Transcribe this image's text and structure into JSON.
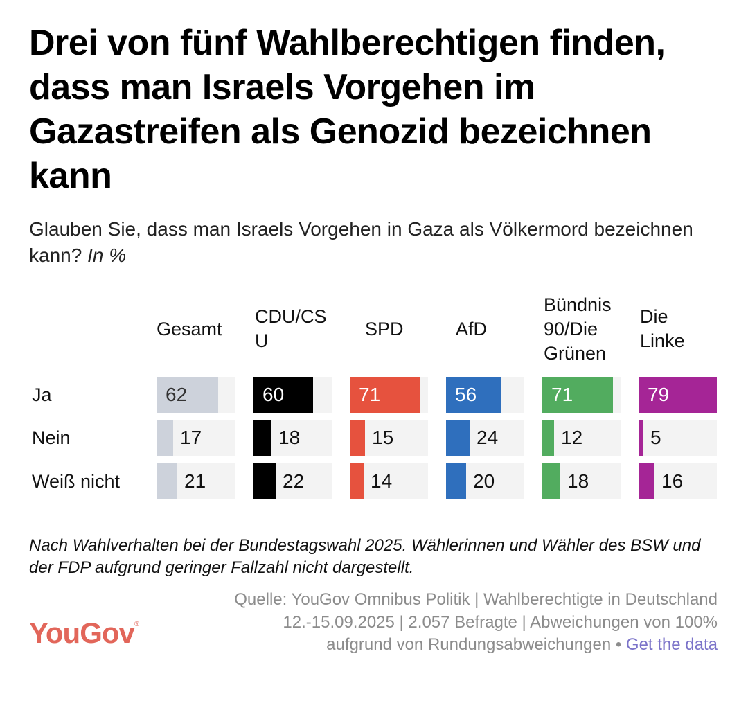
{
  "title": "Drei von fünf Wahlberechtigen finden, dass man Israels Vorgehen im Gazastreifen als Genozid bezeichnen kann",
  "subtitle": "Glauben Sie, dass man Israels Vorgehen in Gaza als Völkermord bezeichnen kann?",
  "subtitle_unit": "In %",
  "note": "Nach Wahlverhalten bei der Bundestagswahl 2025. Wählerinnen und Wähler des BSW und der FDP aufgrund geringer Fallzahl nicht dargestellt.",
  "source": "Quelle: YouGov Omnibus Politik | Wahlberechtigte in Deutschland 12.-15.09.2025 | 2.057 Befragte | Abweichungen von 100% aufgrund von Rundungsabweichungen •",
  "source_link": "Get the data",
  "logo": "YouGov",
  "chart_data": {
    "type": "bar",
    "title": "Drei von fünf Wahlberechtigen finden, dass man Israels Vorgehen im Gazastreifen als Genozid bezeichnen kann",
    "unit": "In %",
    "xlim": [
      0,
      100
    ],
    "categories": [
      "Ja",
      "Nein",
      "Weiß nicht"
    ],
    "series": [
      {
        "name": "Gesamt",
        "color": "#cdd2db",
        "text_color": "#333333",
        "values": [
          62,
          17,
          21
        ]
      },
      {
        "name": "CDU/CSU",
        "display": "CDU/CS\nU",
        "color": "#000000",
        "text_color": "#ffffff",
        "values": [
          60,
          18,
          22
        ]
      },
      {
        "name": "SPD",
        "color": "#e6523e",
        "text_color": "#ffffff",
        "values": [
          71,
          15,
          14
        ]
      },
      {
        "name": "AfD",
        "color": "#2f6fbd",
        "text_color": "#ffffff",
        "values": [
          56,
          24,
          20
        ]
      },
      {
        "name": "Bündnis 90/Die Grünen",
        "display": "Bündnis\n90/Die\nGrünen",
        "color": "#52ac5f",
        "text_color": "#ffffff",
        "values": [
          71,
          12,
          18
        ]
      },
      {
        "name": "Die Linke",
        "display": "Die\nLinke",
        "color": "#a52596",
        "text_color": "#ffffff",
        "values": [
          79,
          5,
          16
        ]
      }
    ]
  }
}
